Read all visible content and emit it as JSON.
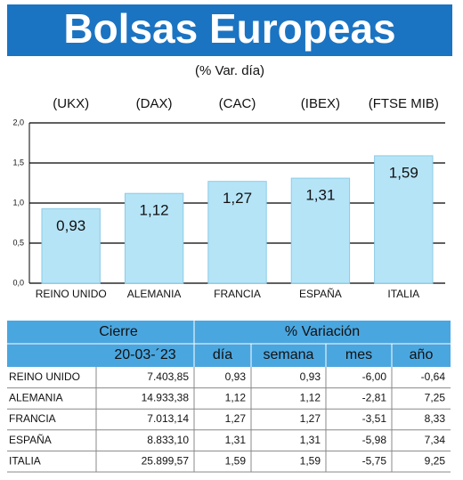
{
  "chart_data": {
    "type": "bar",
    "title": "Bolsas Europeas",
    "subtitle": "(% Var. día)",
    "index_labels": [
      "(UKX)",
      "(DAX)",
      "(CAC)",
      "(IBEX)",
      "(FTSE MIB)"
    ],
    "categories": [
      "REINO UNIDO",
      "ALEMANIA",
      "FRANCIA",
      "ESPAÑA",
      "ITALIA"
    ],
    "values": [
      0.93,
      1.12,
      1.27,
      1.31,
      1.59
    ],
    "value_labels": [
      "0,93",
      "1,12",
      "1,27",
      "1,31",
      "1,59"
    ],
    "color": "#b5e4f7",
    "ylim": [
      0,
      2
    ],
    "yticks": [
      {
        "value": 0,
        "label": "0,0"
      },
      {
        "value": 0.5,
        "label": "0,5"
      },
      {
        "value": 1,
        "label": "1,0"
      },
      {
        "value": 1.5,
        "label": "1,5"
      },
      {
        "value": 2,
        "label": "2,0"
      }
    ],
    "grid": true
  },
  "table": {
    "header": {
      "close": "Cierre",
      "change": "% Variación",
      "date": "20-03-´23",
      "columns": [
        "día",
        "semana",
        "mes",
        "año"
      ]
    },
    "rows": [
      [
        "REINO UNIDO",
        "7.403,85",
        "0,93",
        "0,93",
        "-6,00",
        "-0,64"
      ],
      [
        "ALEMANIA",
        "14.933,38",
        "1,12",
        "1,12",
        "-2,81",
        "7,25"
      ],
      [
        "FRANCIA",
        "7.013,14",
        "1,27",
        "1,27",
        "-3,51",
        "8,33"
      ],
      [
        "ESPAÑA",
        "8.833,10",
        "1,31",
        "1,31",
        "-5,98",
        "7,34"
      ],
      [
        "ITALIA",
        "25.899,57",
        "1,59",
        "1,59",
        "-5,75",
        "9,25"
      ]
    ]
  }
}
